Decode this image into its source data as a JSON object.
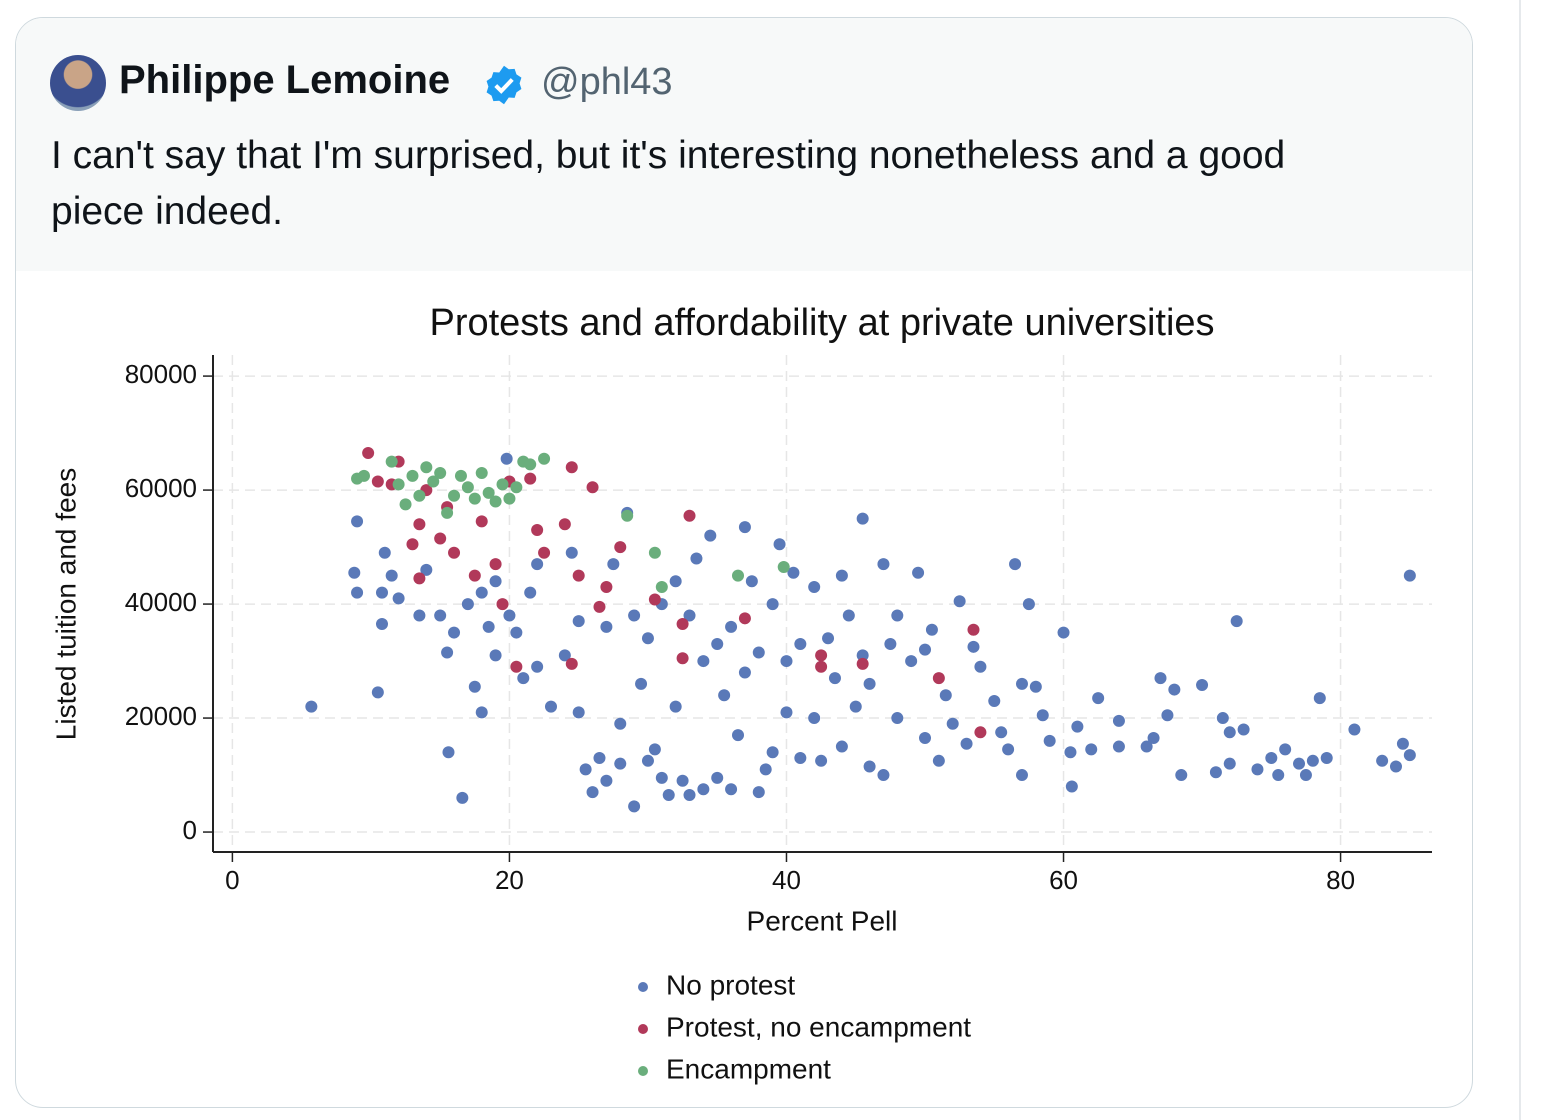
{
  "author": {
    "name": "Philippe Lemoine",
    "handle": "@phl43"
  },
  "text": "I can't say that I'm surprised, but it's interesting nonetheless and a good piece indeed.",
  "chart_data": {
    "type": "scatter",
    "title": "Protests and affordability at private universities",
    "x_label": "Percent Pell",
    "y_label": "Listed tuition and fees",
    "xlim": [
      -1.4,
      86.6
    ],
    "ylim": [
      -3500,
      83700
    ],
    "xticks": [
      0,
      20,
      40,
      60,
      80
    ],
    "yticks": [
      0,
      20000,
      40000,
      60000,
      80000
    ],
    "grid": true,
    "legend": "bottom",
    "series": [
      {
        "name": "No protest",
        "color": "#5a79b8",
        "x": [
          5.7,
          8.8,
          9,
          9,
          10.5,
          10.8,
          10.8,
          11,
          11.5,
          12,
          13.5,
          14,
          15,
          15.5,
          15.6,
          16.6,
          16,
          17,
          17.5,
          18,
          18,
          18.5,
          19,
          19,
          19.8,
          20,
          20.5,
          21,
          21.5,
          22,
          22,
          23,
          24,
          24.5,
          25,
          25,
          25.5,
          26,
          26.5,
          27,
          27,
          27.5,
          28,
          28,
          28.5,
          29,
          29,
          29.5,
          30,
          30,
          30.5,
          31,
          31,
          31.5,
          32,
          32,
          32.5,
          33,
          33,
          33.5,
          34,
          34,
          34.5,
          35,
          35,
          35.5,
          36,
          36,
          36.5,
          37,
          37,
          37.5,
          38,
          38,
          38.5,
          39,
          39,
          39.5,
          40,
          40,
          40.5,
          41,
          41,
          42,
          42,
          42.5,
          43,
          43.5,
          44,
          44,
          44.5,
          45,
          45.5,
          45.5,
          46,
          46,
          47,
          47,
          47.5,
          48,
          48,
          49,
          49.5,
          50,
          50,
          50.5,
          51,
          51.5,
          52,
          52.5,
          53,
          53.5,
          54,
          55,
          55.5,
          56,
          56.5,
          57,
          57,
          57.5,
          58,
          58.5,
          59,
          60,
          60.5,
          60.6,
          61,
          62,
          62.5,
          64,
          64,
          66,
          66.5,
          67,
          67.5,
          68,
          68.5,
          70,
          71,
          71.5,
          72,
          72,
          72.5,
          73,
          74,
          75,
          75.5,
          76,
          77,
          77.5,
          78,
          78.5,
          79,
          81,
          83,
          84,
          84.5,
          85,
          85
        ],
        "values": [
          22000,
          45500,
          42000,
          54500,
          24500,
          36500,
          42000,
          49000,
          45000,
          41000,
          38000,
          46000,
          38000,
          31500,
          14000,
          6000,
          35000,
          40000,
          25500,
          21000,
          42000,
          36000,
          31000,
          44000,
          65500,
          38000,
          35000,
          27000,
          42000,
          47000,
          29000,
          22000,
          31000,
          49000,
          21000,
          37000,
          11000,
          7000,
          13000,
          9000,
          36000,
          47000,
          19000,
          12000,
          56000,
          4500,
          38000,
          26000,
          12500,
          34000,
          14500,
          9500,
          40000,
          6500,
          22000,
          44000,
          9000,
          6500,
          38000,
          48000,
          30000,
          7500,
          52000,
          9500,
          33000,
          24000,
          7500,
          36000,
          17000,
          53500,
          28000,
          44000,
          31500,
          7000,
          11000,
          40000,
          14000,
          50500,
          30000,
          21000,
          45500,
          13000,
          33000,
          20000,
          43000,
          12500,
          34000,
          27000,
          45000,
          15000,
          38000,
          22000,
          55000,
          31000,
          11500,
          26000,
          47000,
          10000,
          33000,
          20000,
          38000,
          30000,
          45500,
          16500,
          32000,
          35500,
          12500,
          24000,
          19000,
          40500,
          15500,
          32500,
          29000,
          23000,
          17500,
          14500,
          47000,
          10000,
          26000,
          40000,
          25500,
          20500,
          16000,
          35000,
          14000,
          8000,
          18500,
          14500,
          23500,
          15000,
          19500,
          15000,
          16500,
          27000,
          20500,
          25000,
          10000,
          25800,
          10500,
          20000,
          12000,
          17500,
          37000,
          18000,
          11000,
          13000,
          10000,
          14500,
          12000,
          10000,
          12500,
          23500,
          13000,
          18000,
          12500,
          11500,
          15500,
          45000,
          13500
        ]
      },
      {
        "name": "Protest, no encampment",
        "color": "#b1395a",
        "x": [
          9.8,
          10.5,
          11.5,
          12,
          13,
          13.5,
          13.5,
          14,
          15,
          15.5,
          16,
          17.5,
          18,
          19,
          19.5,
          20,
          20.5,
          21.5,
          22,
          22.5,
          24,
          24.5,
          24.5,
          25,
          26,
          26.5,
          27,
          28,
          30.5,
          32.5,
          32.5,
          33,
          37,
          42.5,
          42.5,
          45.5,
          51,
          53.5,
          54
        ],
        "values": [
          66500,
          61500,
          61000,
          65000,
          50500,
          44500,
          54000,
          60000,
          51500,
          57000,
          49000,
          45000,
          54500,
          47000,
          40000,
          61500,
          29000,
          62000,
          53000,
          49000,
          54000,
          64000,
          29500,
          45000,
          60500,
          39500,
          43000,
          50000,
          40800,
          30500,
          36500,
          55500,
          37500,
          31000,
          29000,
          29500,
          27000,
          35500,
          17500
        ]
      },
      {
        "name": "Encampment",
        "color": "#6aae7c",
        "x": [
          9,
          9.5,
          11.5,
          12,
          12.5,
          13,
          13.5,
          14,
          14.5,
          15,
          15.5,
          16,
          16.5,
          17,
          17.5,
          18,
          18.5,
          19,
          19.5,
          20,
          20.5,
          21,
          21.5,
          22.5,
          28.5,
          30.5,
          31,
          36.5,
          39.8
        ],
        "values": [
          62000,
          62500,
          65000,
          61000,
          57500,
          62500,
          59000,
          64000,
          61500,
          63000,
          56000,
          59000,
          62500,
          60500,
          58500,
          63000,
          59500,
          58000,
          61000,
          58500,
          60500,
          65000,
          64500,
          65500,
          55500,
          49000,
          43000,
          45000,
          46500
        ]
      }
    ]
  }
}
